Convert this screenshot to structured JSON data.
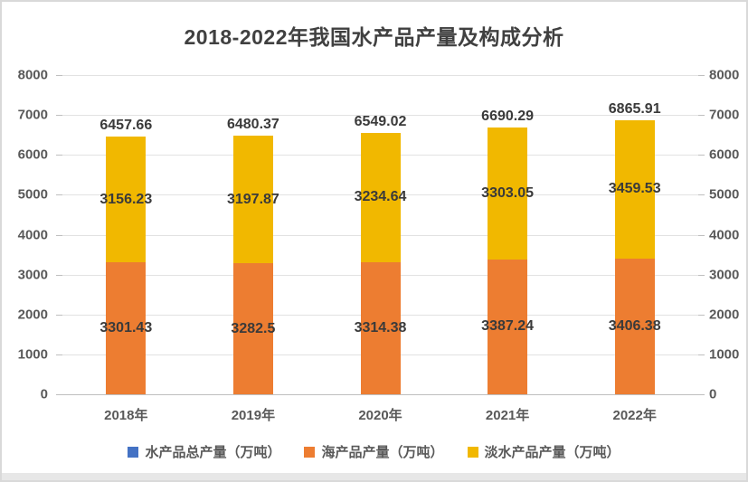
{
  "title": "2018-2022年我国水产品产量及构成分析",
  "colors": {
    "total_blue": "#4472C4",
    "marine_orange": "#ED7D31",
    "freshwater_yellow": "#F1B800",
    "title_text": "#404040",
    "data_label_text": "#3A3A3A",
    "axis_text": "#595959",
    "gridline": "#E2E2E2",
    "frame_border": "#D9D9D9",
    "bottom_strip": "#E7E7E7"
  },
  "legend": [
    {
      "label": "水产品总产量（万吨）",
      "color": "#4472C4"
    },
    {
      "label": "海产品产量（万吨）",
      "color": "#ED7D31"
    },
    {
      "label": "淡水产品产量（万吨）",
      "color": "#F1B800"
    }
  ],
  "chart_data": {
    "type": "bar",
    "stacked": true,
    "title": "2018-2022年我国水产品产量及构成分析",
    "categories": [
      "2018年",
      "2019年",
      "2020年",
      "2021年",
      "2022年"
    ],
    "series": [
      {
        "name": "水产品总产量（万吨）",
        "color": "#4472C4",
        "role": "total-label-above-bar",
        "values": [
          6457.66,
          6480.37,
          6549.02,
          6690.29,
          6865.91
        ]
      },
      {
        "name": "海产品产量（万吨）",
        "color": "#ED7D31",
        "role": "bottom-stack-segment",
        "values": [
          3301.43,
          3282.5,
          3314.38,
          3387.24,
          3406.38
        ]
      },
      {
        "name": "淡水产品产量（万吨）",
        "color": "#F1B800",
        "role": "top-stack-segment",
        "values": [
          3156.23,
          3197.87,
          3234.64,
          3303.05,
          3459.53
        ]
      }
    ],
    "y_axis": {
      "min": 0,
      "max": 8000,
      "step": 1000,
      "ticks": [
        8000,
        7000,
        6000,
        5000,
        4000,
        3000,
        2000,
        1000,
        0
      ]
    },
    "secondary_y_axis_ticks": [
      8000,
      7000,
      6000,
      5000,
      4000,
      3000,
      2000,
      1000,
      0
    ],
    "grid": true,
    "legend_position": "bottom",
    "data_labels": "shown"
  }
}
